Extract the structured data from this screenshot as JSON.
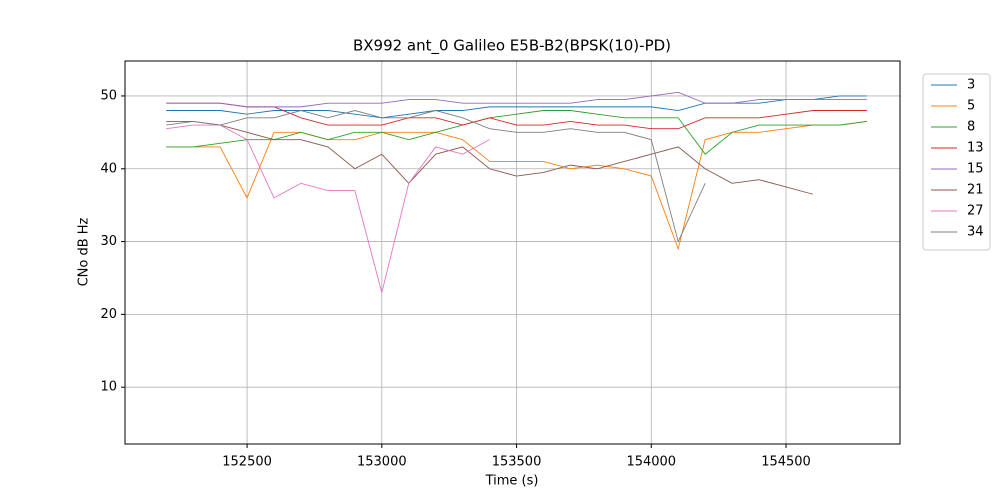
{
  "chart_data": {
    "type": "line",
    "title": "BX992 ant_0 Galileo E5B-B2(BPSK(10)-PD)",
    "x_label": "Time (s)",
    "y_label": "CNo dB Hz",
    "x": [
      152200,
      152300,
      152400,
      152500,
      152600,
      152700,
      152800,
      152900,
      153000,
      153100,
      153200,
      153300,
      153400,
      153500,
      153600,
      153700,
      153800,
      153900,
      154000,
      154100,
      154200,
      154300,
      154400,
      154500,
      154600,
      154700,
      154800
    ],
    "series": [
      {
        "name": "3",
        "color": "#1f77b4",
        "values": [
          48,
          48,
          48,
          47.5,
          48,
          48,
          48,
          47.5,
          47,
          47.5,
          48,
          48,
          48.5,
          48.5,
          48.5,
          48.5,
          48.5,
          48.5,
          48.5,
          48,
          49,
          49,
          49,
          49.5,
          49.5,
          50,
          50
        ]
      },
      {
        "name": "5",
        "color": "#ff7f0e",
        "values": [
          43,
          43,
          43,
          36,
          45,
          45,
          44,
          44,
          45,
          45,
          45,
          44,
          41,
          41,
          41,
          40,
          40.5,
          40,
          39,
          29,
          44,
          45,
          45,
          45.5,
          46,
          46,
          46.5
        ]
      },
      {
        "name": "8",
        "color": "#2ca02c",
        "values": [
          43,
          43,
          43.5,
          44,
          44,
          45,
          44,
          45,
          45,
          44,
          45,
          46,
          47,
          47.5,
          48,
          48,
          47.5,
          47,
          47,
          47,
          42,
          45,
          46,
          46,
          46,
          46,
          46.5
        ]
      },
      {
        "name": "13",
        "color": "#d62728",
        "values": [
          49,
          49,
          49,
          48.5,
          48.5,
          47,
          46,
          46,
          46,
          47,
          47,
          46,
          47,
          46,
          46,
          46.5,
          46,
          46,
          45.5,
          45.5,
          47,
          47,
          47,
          47.5,
          48,
          48,
          48
        ]
      },
      {
        "name": "15",
        "color": "#9467bd",
        "values": [
          49,
          49,
          49,
          48.5,
          48.5,
          48.5,
          49,
          49,
          49,
          49.5,
          49.5,
          49,
          49,
          49,
          49,
          49,
          49.5,
          49.5,
          50,
          50.5,
          49,
          49,
          49.5,
          49.5,
          49.5,
          49.5,
          49.5
        ]
      },
      {
        "name": "21",
        "color": "#8c564b",
        "values": [
          46.5,
          46.5,
          46,
          45,
          44,
          44,
          43,
          40,
          42,
          38,
          42,
          43,
          40,
          39,
          39.5,
          40.5,
          40,
          41,
          42,
          43,
          40,
          38,
          38.5,
          37.5,
          36.5,
          null,
          null
        ]
      },
      {
        "name": "27",
        "color": "#e377c2",
        "values": [
          45.5,
          46,
          46,
          44,
          36,
          38,
          37,
          37,
          23,
          38,
          43,
          42,
          44,
          null,
          null,
          null,
          null,
          null,
          null,
          null,
          null,
          null,
          null,
          null,
          null,
          null,
          null
        ]
      },
      {
        "name": "34",
        "color": "#7f7f7f",
        "values": [
          46,
          46.5,
          46,
          47,
          47,
          48,
          47,
          48,
          47,
          47,
          48,
          47,
          45.5,
          45,
          45,
          45.5,
          45,
          45,
          44,
          30,
          38,
          null,
          null,
          null,
          null,
          null,
          null
        ]
      }
    ],
    "xlim": [
      152047,
      154923
    ],
    "ylim": [
      2.2,
      54.8
    ],
    "xticks": [
      152500,
      153000,
      153500,
      154000,
      154500
    ],
    "yticks": [
      10,
      20,
      30,
      40,
      50
    ],
    "grid": true,
    "legend": "outside-upper-right"
  }
}
